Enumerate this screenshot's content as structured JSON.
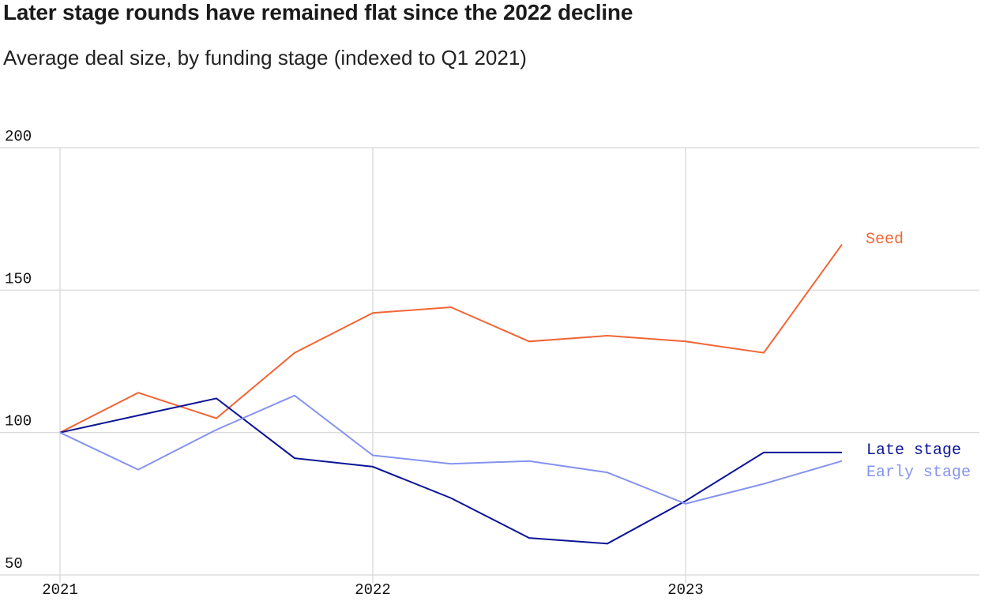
{
  "title": "Later stage rounds have remained flat since the 2022 decline",
  "subtitle": "Average deal size, by funding stage (indexed to Q1 2021)",
  "chart_data": {
    "type": "line",
    "x": [
      "Q1 2021",
      "Q2 2021",
      "Q3 2021",
      "Q4 2021",
      "Q1 2022",
      "Q2 2022",
      "Q3 2022",
      "Q4 2022",
      "Q1 2023",
      "Q2 2023",
      "Q3 2023"
    ],
    "x_ticks": [
      "2021",
      "2022",
      "2023"
    ],
    "y_ticks": [
      50,
      100,
      150,
      200
    ],
    "ylim": [
      50,
      200
    ],
    "grid": true,
    "series": [
      {
        "name": "Seed",
        "color": "#f26535",
        "values": [
          100,
          114,
          105,
          128,
          142,
          144,
          132,
          134,
          132,
          128,
          166
        ]
      },
      {
        "name": "Late stage",
        "color": "#0c1596",
        "values": [
          100,
          106,
          112,
          91,
          88,
          77,
          63,
          61,
          76,
          93,
          93
        ]
      },
      {
        "name": "Early stage",
        "color": "#8593ef",
        "values": [
          100,
          87,
          101,
          113,
          92,
          89,
          90,
          86,
          75,
          82,
          90
        ]
      }
    ]
  }
}
